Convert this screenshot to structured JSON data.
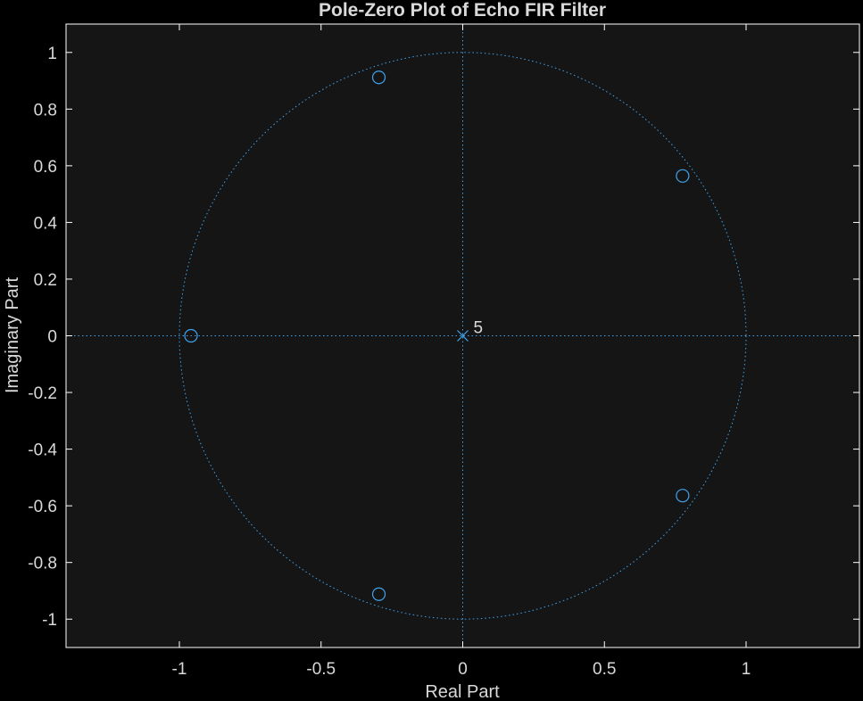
{
  "colors": {
    "background": "#000000",
    "axes_background": "#151515",
    "axes_frame": "#ffffff",
    "text": "#d9d9d9",
    "series": "#3fa3ee"
  },
  "chart_data": {
    "type": "scatter",
    "title": "Pole-Zero Plot of Echo FIR Filter",
    "xlabel": "Real Part",
    "ylabel": "Imaginary Part",
    "xlim": [
      -1.4,
      1.4
    ],
    "ylim": [
      -1.1,
      1.1
    ],
    "x_ticks": [
      -1,
      -0.5,
      0,
      0.5,
      1
    ],
    "x_tick_labels": [
      "-1",
      "-0.5",
      "0",
      "0.5",
      "1"
    ],
    "y_ticks": [
      1,
      0.8,
      0.6,
      0.4,
      0.2,
      0,
      -0.2,
      -0.4,
      -0.6,
      -0.8,
      -1
    ],
    "y_tick_labels": [
      "1",
      "0.8",
      "0.6",
      "0.4",
      "0.2",
      "0",
      "-0.2",
      "-0.4",
      "-0.6",
      "-0.8",
      "-1"
    ],
    "grid": false,
    "unit_circle": true,
    "reference_axes": true,
    "zeros": [
      {
        "re": -0.296,
        "im": 0.912
      },
      {
        "re": 0.776,
        "im": 0.564
      },
      {
        "re": -0.959,
        "im": 0.0
      },
      {
        "re": 0.776,
        "im": -0.564
      },
      {
        "re": -0.296,
        "im": -0.912
      }
    ],
    "poles": [
      {
        "re": 0.0,
        "im": 0.0,
        "multiplicity_label": "5"
      }
    ]
  }
}
